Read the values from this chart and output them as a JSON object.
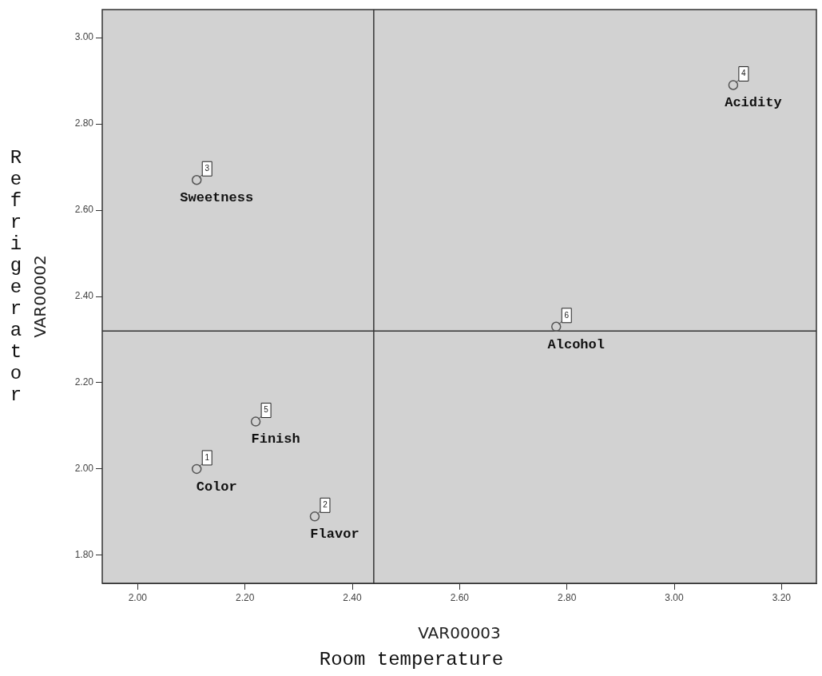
{
  "chart_data": {
    "type": "scatter",
    "xlabel": "VAR00003",
    "ylabel": "VAR00002",
    "x": [
      2.11,
      2.33,
      2.11,
      3.11,
      2.22,
      2.78
    ],
    "values": [
      2.0,
      1.89,
      2.67,
      2.89,
      2.11,
      2.33
    ],
    "color": "#555555",
    "marker": "circle",
    "xlim": [
      1.934,
      3.265
    ],
    "xticks": [
      {
        "value": 2.0,
        "label": "2.00"
      },
      {
        "value": 2.2,
        "label": "2.20"
      },
      {
        "value": 2.4,
        "label": "2.40"
      },
      {
        "value": 2.6,
        "label": "2.60"
      },
      {
        "value": 2.8,
        "label": "2.80"
      },
      {
        "value": 3.0,
        "label": "3.00"
      },
      {
        "value": 3.2,
        "label": "3.20"
      }
    ],
    "ylim": [
      1.735,
      3.065
    ],
    "yticks": [
      {
        "value": 1.8,
        "label": "1.80"
      },
      {
        "value": 2.0,
        "label": "2.00"
      },
      {
        "value": 2.2,
        "label": "2.20"
      },
      {
        "value": 2.4,
        "label": "2.40"
      },
      {
        "value": 2.6,
        "label": "2.60"
      },
      {
        "value": 2.8,
        "label": "2.80"
      },
      {
        "value": 3.0,
        "label": "3.00"
      }
    ],
    "ref_lines": [
      {
        "axis": "x",
        "value": 2.44,
        "color": "#333333"
      },
      {
        "axis": "y",
        "value": 2.32,
        "color": "#333333"
      }
    ],
    "annotations": [
      "Room temperature",
      "Refrigerator",
      {
        "text": "Color",
        "x": 2.11,
        "y": 2.0
      },
      {
        "text": "Flavor",
        "x": 2.33,
        "y": 1.89
      },
      {
        "text": "Sweetness",
        "x": 2.11,
        "y": 2.67
      },
      {
        "text": "Acidity",
        "x": 3.11,
        "y": 2.89
      },
      {
        "text": "Finish",
        "x": 2.22,
        "y": 2.11
      },
      {
        "text": "Alcohol",
        "x": 2.78,
        "y": 2.33
      },
      {
        "text": "1",
        "x": 2.11,
        "y": 2.0
      },
      {
        "text": "2",
        "x": 2.33,
        "y": 1.89
      },
      {
        "text": "3",
        "x": 2.11,
        "y": 2.67
      },
      {
        "text": "4",
        "x": 3.11,
        "y": 2.89
      },
      {
        "text": "5",
        "x": 2.22,
        "y": 2.11
      },
      {
        "text": "6",
        "x": 2.78,
        "y": 2.33
      }
    ]
  }
}
